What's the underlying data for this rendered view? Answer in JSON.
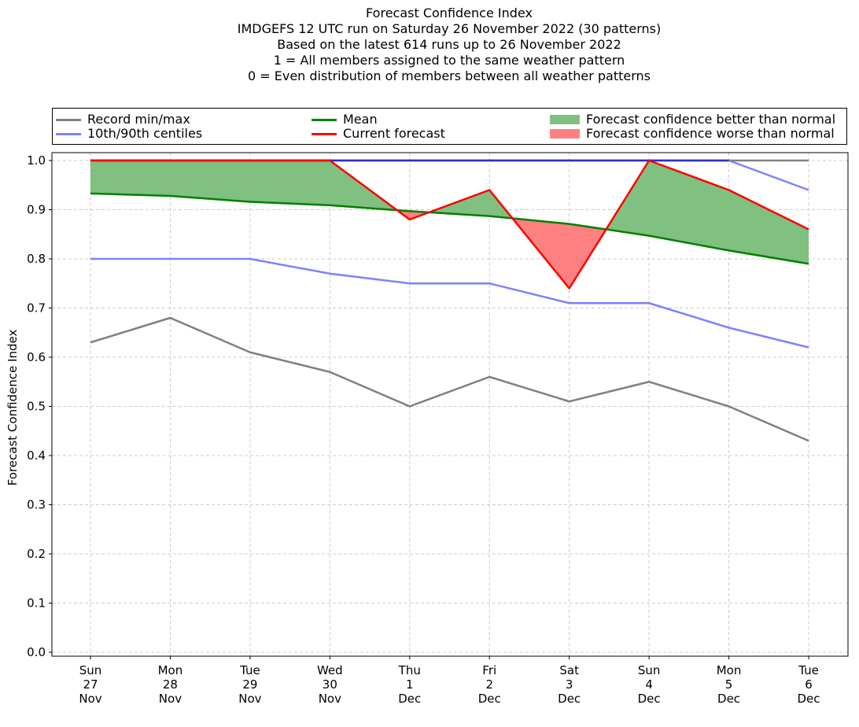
{
  "chart_data": {
    "type": "line",
    "title_lines": [
      "Forecast Confidence Index",
      "IMDGEFS 12 UTC run on Saturday 26 November 2022 (30 patterns)",
      "Based on the latest 614 runs up to 26 November 2022",
      "1 = All members assigned to the same weather pattern",
      "0 = Even distribution of members between all weather patterns"
    ],
    "xlabel": "",
    "ylabel": "Forecast Confidence Index",
    "ylim": [
      0.0,
      1.0
    ],
    "yticks": [
      "0.0",
      "0.1",
      "0.2",
      "0.3",
      "0.4",
      "0.5",
      "0.6",
      "0.7",
      "0.8",
      "0.9",
      "1.0"
    ],
    "grid": true,
    "legend_position": "top",
    "categories": [
      [
        "Sun",
        "27",
        "Nov"
      ],
      [
        "Mon",
        "28",
        "Nov"
      ],
      [
        "Tue",
        "29",
        "Nov"
      ],
      [
        "Wed",
        "30",
        "Nov"
      ],
      [
        "Thu",
        "1",
        "Dec"
      ],
      [
        "Fri",
        "2",
        "Dec"
      ],
      [
        "Sat",
        "3",
        "Dec"
      ],
      [
        "Sun",
        "4",
        "Dec"
      ],
      [
        "Mon",
        "5",
        "Dec"
      ],
      [
        "Tue",
        "6",
        "Dec"
      ]
    ],
    "series": {
      "record_min": [
        0.63,
        0.68,
        0.61,
        0.57,
        0.5,
        0.56,
        0.51,
        0.55,
        0.5,
        0.43
      ],
      "record_max": [
        1.0,
        1.0,
        1.0,
        1.0,
        1.0,
        1.0,
        1.0,
        1.0,
        1.0,
        1.0
      ],
      "p10": [
        0.8,
        0.8,
        0.8,
        0.77,
        0.75,
        0.75,
        0.71,
        0.71,
        0.66,
        0.62
      ],
      "p90": [
        1.0,
        1.0,
        1.0,
        1.0,
        1.0,
        1.0,
        1.0,
        1.0,
        1.0,
        0.94
      ],
      "mean": [
        0.933,
        0.928,
        0.916,
        0.909,
        0.897,
        0.887,
        0.871,
        0.847,
        0.817,
        0.79
      ],
      "current": [
        1.0,
        1.0,
        1.0,
        1.0,
        0.88,
        0.94,
        0.74,
        1.0,
        0.94,
        0.86
      ]
    },
    "colors": {
      "record": "#808080",
      "centiles": "#8080ff",
      "overlap": "#3030c0",
      "mean": "#008000",
      "current": "#ff0000",
      "better_fill": "#80c080",
      "worse_fill": "#ff8080",
      "grid": "#cccccc"
    },
    "legend": [
      {
        "label": "Record min/max",
        "kind": "line",
        "color": "#808080"
      },
      {
        "label": "10th/90th centiles",
        "kind": "line",
        "color": "#8080ff"
      },
      {
        "label": "Mean",
        "kind": "line",
        "color": "#008000"
      },
      {
        "label": "Current forecast",
        "kind": "line",
        "color": "#ff0000"
      },
      {
        "label": "Forecast confidence better than normal",
        "kind": "patch",
        "color": "#80c080"
      },
      {
        "label": "Forecast confidence worse than normal",
        "kind": "patch",
        "color": "#ff8080"
      }
    ]
  }
}
